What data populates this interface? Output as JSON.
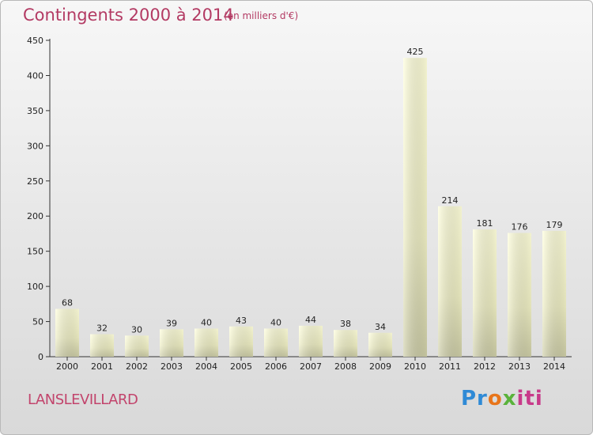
{
  "header": {
    "title": "Contingents 2000 à 2014",
    "subtitle": "(en milliers d'€)"
  },
  "footer": {
    "commune": "LANSLEVILLARD",
    "logo_text": "Proxiti"
  },
  "colors": {
    "title": "#b33a63",
    "bar_top": "#ffffd8",
    "bar_bottom": "#cfcfa8"
  },
  "chart_data": {
    "type": "bar",
    "title": "Contingents 2000 à 2014",
    "subtitle": "(en milliers d'€)",
    "xlabel": "",
    "ylabel": "",
    "categories": [
      "2000",
      "2001",
      "2002",
      "2003",
      "2004",
      "2005",
      "2006",
      "2007",
      "2008",
      "2009",
      "2010",
      "2011",
      "2012",
      "2013",
      "2014"
    ],
    "values": [
      68,
      32,
      30,
      39,
      40,
      43,
      40,
      44,
      38,
      34,
      425,
      214,
      181,
      176,
      179
    ],
    "ylim": [
      0,
      450
    ],
    "yticks": [
      0,
      50,
      100,
      150,
      200,
      250,
      300,
      350,
      400,
      450
    ],
    "grid": false,
    "legend": "none"
  }
}
